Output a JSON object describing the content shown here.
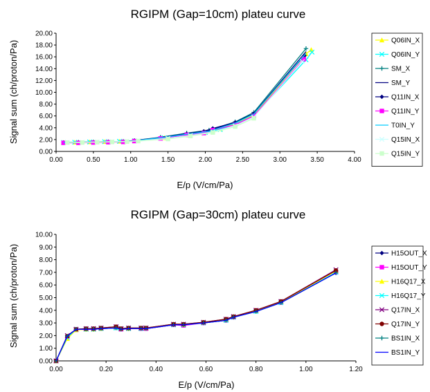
{
  "chart_data": [
    {
      "type": "line",
      "title": "RGIPM (Gap=10cm) plateu curve",
      "xlabel": "E/p (V/cm/Pa)",
      "ylabel": "Signal sum (ch/proton/Pa)",
      "xlim": [
        0,
        4
      ],
      "ylim": [
        0,
        20
      ],
      "xticks": [
        "0.00",
        "0.50",
        "1.00",
        "1.50",
        "2.00",
        "2.50",
        "3.00",
        "3.50",
        "4.00"
      ],
      "yticks": [
        "0.00",
        "2.00",
        "4.00",
        "6.00",
        "8.00",
        "10.00",
        "12.00",
        "14.00",
        "16.00",
        "18.00",
        "20.00"
      ],
      "legend_position": "right",
      "grid": false,
      "series": [
        {
          "name": "Q06IN_X",
          "color": "#ffff00",
          "marker": "triangle",
          "x": [
            0.1,
            0.25,
            0.45,
            0.65,
            0.85,
            1.05,
            1.45,
            1.75,
            2.0,
            2.2,
            2.4,
            2.65,
            3.35,
            3.42
          ],
          "y": [
            1.5,
            1.55,
            1.6,
            1.65,
            1.7,
            1.8,
            2.3,
            2.8,
            3.3,
            3.8,
            4.7,
            6.1,
            16.5,
            17.2
          ]
        },
        {
          "name": "Q06IN_Y",
          "color": "#00ffff",
          "marker": "x",
          "x": [
            0.1,
            0.25,
            0.45,
            0.65,
            0.85,
            1.05,
            1.45,
            1.75,
            2.0,
            2.2,
            2.4,
            2.65,
            3.35,
            3.43
          ],
          "y": [
            1.5,
            1.55,
            1.6,
            1.65,
            1.7,
            1.8,
            2.3,
            2.8,
            3.2,
            3.7,
            4.6,
            6.0,
            15.5,
            16.8
          ]
        },
        {
          "name": "SM_X",
          "color": "#008080",
          "marker": "plus",
          "x": [
            0.1,
            0.3,
            0.5,
            0.7,
            0.9,
            1.05,
            1.4,
            1.75,
            2.05,
            2.4,
            2.65,
            3.35
          ],
          "y": [
            1.5,
            1.55,
            1.6,
            1.65,
            1.7,
            1.85,
            2.4,
            3.1,
            3.6,
            5.0,
            6.6,
            17.4
          ]
        },
        {
          "name": "SM_Y",
          "color": "#000080",
          "marker": "none",
          "x": [
            0.1,
            0.3,
            0.5,
            0.7,
            0.9,
            1.05,
            1.4,
            1.75,
            2.05,
            2.4,
            2.65,
            3.35
          ],
          "y": [
            1.5,
            1.55,
            1.6,
            1.65,
            1.7,
            1.85,
            2.35,
            3.0,
            3.5,
            4.9,
            6.4,
            16.9
          ]
        },
        {
          "name": "Q11IN_X",
          "color": "#000080",
          "marker": "diamond",
          "x": [
            0.1,
            0.3,
            0.5,
            0.7,
            0.9,
            1.05,
            1.4,
            1.75,
            1.98,
            2.1,
            2.4,
            2.65,
            3.33
          ],
          "y": [
            1.5,
            1.5,
            1.55,
            1.6,
            1.65,
            1.8,
            2.3,
            3.0,
            3.4,
            3.9,
            4.9,
            6.4,
            16.2
          ]
        },
        {
          "name": "Q11IN_Y",
          "color": "#ff00ff",
          "marker": "square",
          "x": [
            0.1,
            0.3,
            0.5,
            0.7,
            0.9,
            1.05,
            1.4,
            1.75,
            1.98,
            2.1,
            2.4,
            2.65,
            3.32
          ],
          "y": [
            1.45,
            1.45,
            1.5,
            1.55,
            1.6,
            1.75,
            2.2,
            2.8,
            3.1,
            3.6,
            4.5,
            6.0,
            15.6
          ]
        },
        {
          "name": "T0IN_Y",
          "color": "#00ccff",
          "marker": "none",
          "x": [
            0.1,
            0.3,
            0.5,
            0.7,
            0.9,
            1.05,
            1.4,
            1.75,
            2.05,
            2.4,
            2.65,
            3.35
          ],
          "y": [
            1.5,
            1.55,
            1.6,
            1.65,
            1.7,
            1.8,
            2.3,
            2.9,
            3.4,
            4.8,
            6.3,
            16.6
          ]
        },
        {
          "name": "Q15IN_X",
          "color": "#ccffff",
          "marker": "x",
          "x": [
            0.15,
            0.35,
            0.55,
            0.75,
            0.95,
            1.1,
            1.5,
            1.8,
            2.1,
            2.4,
            2.65,
            3.3
          ],
          "y": [
            1.5,
            1.55,
            1.6,
            1.65,
            1.7,
            1.8,
            2.2,
            2.7,
            3.3,
            4.3,
            5.8,
            15.2
          ]
        },
        {
          "name": "Q15IN_Y",
          "color": "#ccffcc",
          "marker": "square",
          "x": [
            0.15,
            0.35,
            0.55,
            0.75,
            0.95,
            1.1,
            1.5,
            1.8,
            2.1,
            2.4,
            2.65
          ],
          "y": [
            1.5,
            1.5,
            1.55,
            1.6,
            1.65,
            1.75,
            2.1,
            2.6,
            3.2,
            4.2,
            5.6
          ]
        }
      ]
    },
    {
      "type": "line",
      "title": "RGIPM (Gap=30cm) plateu curve",
      "xlabel": "E/p (V/cm/Pa)",
      "ylabel": "Signal sum (ch/proton/Pa)",
      "xlim": [
        0,
        1.2
      ],
      "ylim": [
        0,
        10
      ],
      "xticks": [
        "0.00",
        "0.20",
        "0.40",
        "0.60",
        "0.80",
        "1.00",
        "1.20"
      ],
      "yticks": [
        "0.00",
        "1.00",
        "2.00",
        "3.00",
        "4.00",
        "5.00",
        "6.00",
        "7.00",
        "8.00",
        "9.00",
        "10.00"
      ],
      "legend_position": "right",
      "grid": false,
      "series": [
        {
          "name": "H15OUT_X",
          "color": "#000080",
          "marker": "diamond",
          "x": [
            0,
            0.045,
            0.08,
            0.12,
            0.15,
            0.18,
            0.24,
            0.26,
            0.29,
            0.34,
            0.36,
            0.47,
            0.51,
            0.59,
            0.68,
            0.71,
            0.8,
            0.9,
            1.12
          ],
          "y": [
            0,
            1.95,
            2.5,
            2.5,
            2.5,
            2.55,
            2.6,
            2.5,
            2.55,
            2.55,
            2.55,
            2.85,
            2.85,
            3.0,
            3.2,
            3.45,
            3.9,
            4.6,
            6.95
          ]
        },
        {
          "name": "H15OUT_Y",
          "color": "#ff00ff",
          "marker": "square",
          "x": [
            0,
            0.045,
            0.08,
            0.12,
            0.15,
            0.18,
            0.24,
            0.26,
            0.29,
            0.34,
            0.36,
            0.47,
            0.51,
            0.59,
            0.68,
            0.71,
            0.8,
            0.9,
            1.12
          ],
          "y": [
            0,
            1.9,
            2.45,
            2.5,
            2.5,
            2.55,
            2.65,
            2.5,
            2.55,
            2.55,
            2.55,
            2.85,
            2.8,
            3.0,
            3.2,
            3.45,
            3.95,
            4.6,
            7.0
          ]
        },
        {
          "name": "H16Q17_X",
          "color": "#ffff00",
          "marker": "triangle",
          "x": [
            0,
            0.045,
            0.08,
            0.12,
            0.15,
            0.18,
            0.24,
            0.26,
            0.29,
            0.34,
            0.36,
            0.47,
            0.51,
            0.59,
            0.68,
            0.71,
            0.8,
            0.9,
            1.12
          ],
          "y": [
            0,
            1.75,
            2.45,
            2.5,
            2.5,
            2.55,
            2.65,
            2.55,
            2.55,
            2.6,
            2.6,
            2.9,
            2.85,
            3.05,
            3.25,
            3.5,
            3.95,
            4.65,
            7.1
          ]
        },
        {
          "name": "H16Q17_Y",
          "color": "#00ffff",
          "marker": "x",
          "x": [
            0,
            0.045,
            0.08,
            0.12,
            0.15,
            0.18,
            0.24,
            0.26,
            0.29,
            0.34,
            0.36,
            0.47,
            0.51,
            0.59,
            0.68,
            0.71,
            0.8,
            0.9,
            1.12
          ],
          "y": [
            0,
            1.85,
            2.5,
            2.5,
            2.5,
            2.55,
            2.6,
            2.55,
            2.55,
            2.55,
            2.6,
            2.85,
            2.85,
            3.0,
            3.2,
            3.45,
            3.9,
            4.6,
            7.0
          ]
        },
        {
          "name": "Q17IN_X",
          "color": "#800080",
          "marker": "x",
          "x": [
            0,
            0.045,
            0.08,
            0.12,
            0.15,
            0.18,
            0.24,
            0.26,
            0.29,
            0.34,
            0.36,
            0.47,
            0.51,
            0.59,
            0.68,
            0.71,
            0.8,
            0.9,
            1.12
          ],
          "y": [
            0,
            2.0,
            2.5,
            2.55,
            2.55,
            2.6,
            2.7,
            2.55,
            2.6,
            2.6,
            2.6,
            2.9,
            2.9,
            3.05,
            3.3,
            3.5,
            4.0,
            4.7,
            7.2
          ]
        },
        {
          "name": "Q17IN_Y",
          "color": "#800000",
          "marker": "circle",
          "x": [
            0,
            0.045,
            0.08,
            0.12,
            0.15,
            0.18,
            0.24,
            0.26,
            0.29,
            0.34,
            0.36,
            0.47,
            0.51,
            0.59,
            0.68,
            0.71,
            0.8,
            0.9,
            1.12
          ],
          "y": [
            0,
            1.95,
            2.5,
            2.55,
            2.55,
            2.6,
            2.7,
            2.55,
            2.6,
            2.6,
            2.6,
            2.9,
            2.9,
            3.05,
            3.3,
            3.5,
            4.0,
            4.7,
            7.15
          ]
        },
        {
          "name": "BS1IN_X",
          "color": "#008080",
          "marker": "plus",
          "x": [
            0,
            0.045,
            0.08,
            0.12,
            0.15,
            0.18,
            0.24,
            0.26,
            0.29,
            0.34,
            0.36,
            0.47,
            0.51,
            0.59,
            0.68,
            0.71,
            0.8,
            0.9,
            1.12
          ],
          "y": [
            0,
            1.95,
            2.5,
            2.5,
            2.5,
            2.55,
            2.6,
            2.5,
            2.55,
            2.55,
            2.55,
            2.85,
            2.85,
            3.0,
            3.2,
            3.45,
            3.9,
            4.6,
            6.95
          ]
        },
        {
          "name": "BS1IN_Y",
          "color": "#0000ff",
          "marker": "none",
          "x": [
            0,
            0.045,
            0.08,
            0.12,
            0.15,
            0.18,
            0.24,
            0.26,
            0.29,
            0.34,
            0.36,
            0.47,
            0.51,
            0.59,
            0.68,
            0.71,
            0.8,
            0.9,
            1.12
          ],
          "y": [
            0,
            1.95,
            2.5,
            2.5,
            2.5,
            2.55,
            2.6,
            2.5,
            2.55,
            2.55,
            2.55,
            2.85,
            2.85,
            3.0,
            3.2,
            3.45,
            3.9,
            4.6,
            6.95
          ]
        }
      ]
    }
  ]
}
